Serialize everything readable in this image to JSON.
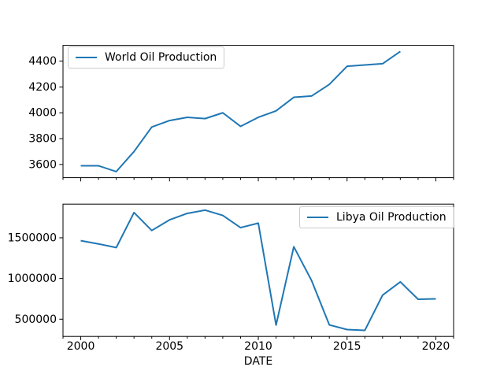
{
  "figure": {
    "background": "#ffffff",
    "axis_color": "#000000",
    "accent_color": "#1f77b4"
  },
  "chart_data": [
    {
      "type": "line",
      "title": "",
      "xlabel": "",
      "ylabel": "",
      "grid": false,
      "xlim": [
        1999,
        2021
      ],
      "ylim": [
        3498,
        4522
      ],
      "xticks_major": [
        2000,
        2005,
        2010,
        2015,
        2020
      ],
      "xticks_minor_every": 1,
      "show_xtick_labels": false,
      "yticks": [
        3600,
        3800,
        4000,
        4200,
        4400
      ],
      "legend": {
        "label": "World Oil Production",
        "position": "upper-left"
      },
      "series": [
        {
          "name": "World Oil Production",
          "color": "#1f77b4",
          "x": [
            2000,
            2001,
            2002,
            2003,
            2004,
            2005,
            2006,
            2007,
            2008,
            2009,
            2010,
            2011,
            2012,
            2013,
            2014,
            2015,
            2016,
            2017,
            2018
          ],
          "values": [
            3590,
            3590,
            3545,
            3700,
            3890,
            3940,
            3965,
            3955,
            4000,
            3895,
            3965,
            4015,
            4120,
            4130,
            4220,
            4360,
            4370,
            4380,
            4475
          ]
        }
      ]
    },
    {
      "type": "line",
      "title": "",
      "xlabel": "DATE",
      "ylabel": "",
      "grid": false,
      "xlim": [
        1999,
        2021
      ],
      "ylim": [
        288000,
        1914000
      ],
      "xticks_major": [
        2000,
        2005,
        2010,
        2015,
        2020
      ],
      "xticks_minor_every": 1,
      "show_xtick_labels": true,
      "yticks": [
        500000,
        1000000,
        1500000
      ],
      "legend": {
        "label": "Libya Oil Production",
        "position": "upper-right"
      },
      "series": [
        {
          "name": "Libya Oil Production",
          "color": "#1f77b4",
          "x": [
            2000,
            2001,
            2002,
            2003,
            2004,
            2005,
            2006,
            2007,
            2008,
            2009,
            2010,
            2011,
            2012,
            2013,
            2014,
            2015,
            2016,
            2017,
            2018,
            2019,
            2020
          ],
          "values": [
            1465000,
            1425000,
            1380000,
            1810000,
            1590000,
            1720000,
            1800000,
            1840000,
            1775000,
            1625000,
            1680000,
            428000,
            1390000,
            975000,
            430000,
            372000,
            362000,
            795000,
            958000,
            745000,
            750000
          ]
        }
      ]
    }
  ]
}
